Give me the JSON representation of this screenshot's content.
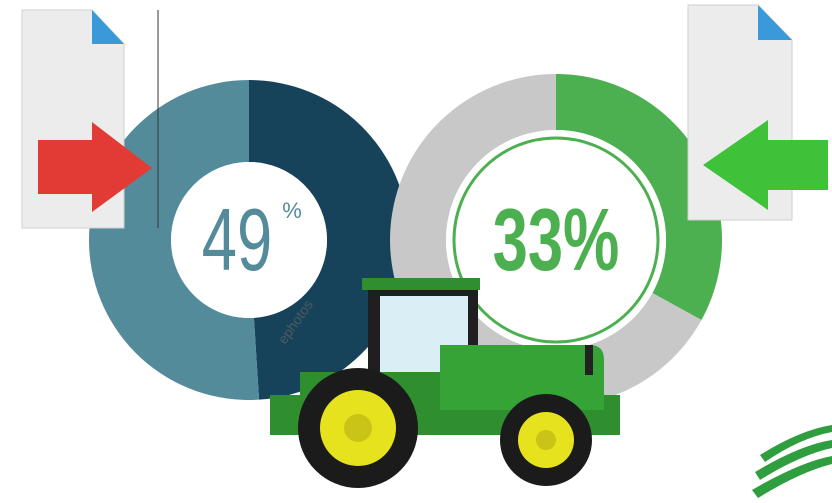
{
  "chart_data": [
    {
      "type": "donut",
      "values": [
        49,
        51
      ],
      "colors": [
        "#16425a",
        "#548b9b"
      ],
      "center_label": {
        "number": "49",
        "unit": "%"
      }
    },
    {
      "type": "donut",
      "values": [
        33,
        67
      ],
      "colors": [
        "#4caf50",
        "#c8c8c8"
      ],
      "center_label": "33%"
    }
  ],
  "watermark": "ephotos"
}
